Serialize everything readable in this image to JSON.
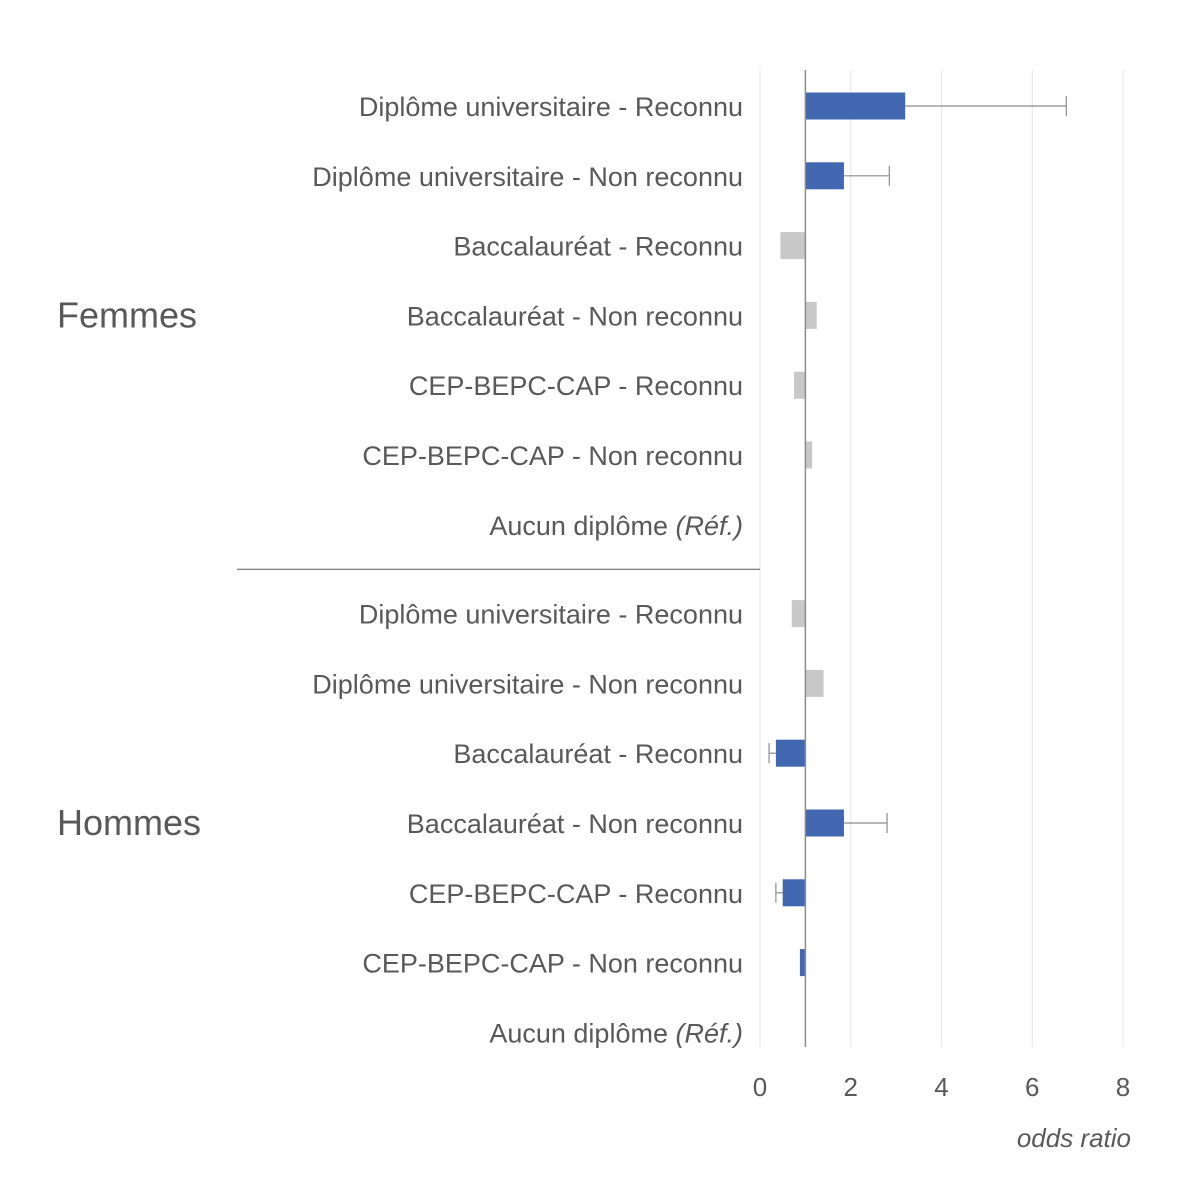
{
  "chart_data": {
    "type": "bar",
    "orientation": "horizontal",
    "baseline": 1,
    "xlabel": "odds ratio",
    "xlim": [
      0,
      8
    ],
    "xticks": [
      0,
      2,
      4,
      6,
      8
    ],
    "grid": true,
    "colors": {
      "significant": "#4067b0",
      "not_significant": "#c8c8c8",
      "error_bar": "#8c8c8c",
      "text": "#595959"
    },
    "reference_suffix": "(Réf.)",
    "groups": [
      {
        "name": "Femmes",
        "rows": [
          {
            "label": "Diplôme universitaire - Reconnu",
            "value": 3.2,
            "ci_high": 6.75,
            "significant": true
          },
          {
            "label": "Diplôme universitaire - Non reconnu",
            "value": 1.85,
            "ci_high": 2.85,
            "significant": true
          },
          {
            "label": "Baccalauréat - Reconnu",
            "value": 0.45,
            "significant": false
          },
          {
            "label": "Baccalauréat - Non reconnu",
            "value": 1.25,
            "significant": false
          },
          {
            "label": "CEP-BEPC-CAP - Reconnu",
            "value": 0.75,
            "significant": false
          },
          {
            "label": "CEP-BEPC-CAP - Non reconnu",
            "value": 1.15,
            "significant": false
          },
          {
            "label": "Aucun diplôme",
            "reference": true
          }
        ]
      },
      {
        "name": "Hommes",
        "rows": [
          {
            "label": "Diplôme universitaire - Reconnu",
            "value": 0.7,
            "significant": false
          },
          {
            "label": "Diplôme universitaire - Non reconnu",
            "value": 1.4,
            "significant": false
          },
          {
            "label": "Baccalauréat - Reconnu",
            "value": 0.35,
            "ci_low": 0.2,
            "significant": true
          },
          {
            "label": "Baccalauréat - Non reconnu",
            "value": 1.85,
            "ci_high": 2.8,
            "significant": true
          },
          {
            "label": "CEP-BEPC-CAP - Reconnu",
            "value": 0.5,
            "ci_low": 0.35,
            "significant": true
          },
          {
            "label": "CEP-BEPC-CAP - Non reconnu",
            "value": 0.88,
            "significant": true
          },
          {
            "label": "Aucun diplôme",
            "reference": true
          }
        ]
      }
    ]
  }
}
